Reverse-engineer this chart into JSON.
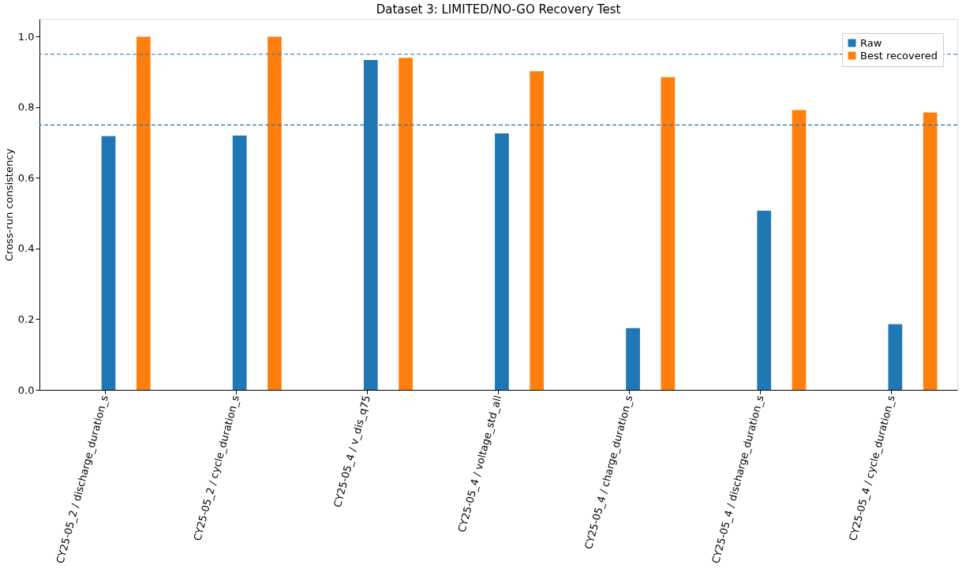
{
  "chart_data": {
    "type": "bar",
    "title": "Dataset 3: LIMITED/NO-GO Recovery Test",
    "ylabel": "Cross-run consistency",
    "categories": [
      "CY25-05_2 / discharge_duration_s",
      "CY25-05_2 / cycle_duration_s",
      "CY25-05_4 / v_dis_q75",
      "CY25-05_4 / voltage_std_all",
      "CY25-05_4 / charge_duration_s",
      "CY25-05_4 / discharge_duration_s",
      "CY25-05_4 / cycle_duration_s"
    ],
    "series": [
      {
        "name": "Raw",
        "color": "#1f77b4",
        "values": [
          0.718,
          0.72,
          0.934,
          0.726,
          0.175,
          0.507,
          0.186
        ]
      },
      {
        "name": "Best recovered",
        "color": "#ff7f0e",
        "values": [
          1.0,
          1.0,
          0.94,
          0.902,
          0.885,
          0.792,
          0.785
        ]
      }
    ],
    "ylim": [
      0,
      1.05
    ],
    "yticks": [
      {
        "value": 0,
        "label": "0.0"
      },
      {
        "value": 0.2,
        "label": "0.2"
      },
      {
        "value": 0.4,
        "label": "0.4"
      },
      {
        "value": 0.6,
        "label": "0.6"
      },
      {
        "value": 0.8,
        "label": "0.8"
      },
      {
        "value": 1.0,
        "label": "1.0"
      }
    ],
    "ref_lines": [
      {
        "axis": "y",
        "value": 0.95,
        "color": "#1f77b4",
        "line_style": "dashed"
      },
      {
        "axis": "y",
        "value": 0.75,
        "color": "#1f77b4",
        "line_style": "dashed"
      }
    ],
    "legend": "top right",
    "grid": false
  }
}
